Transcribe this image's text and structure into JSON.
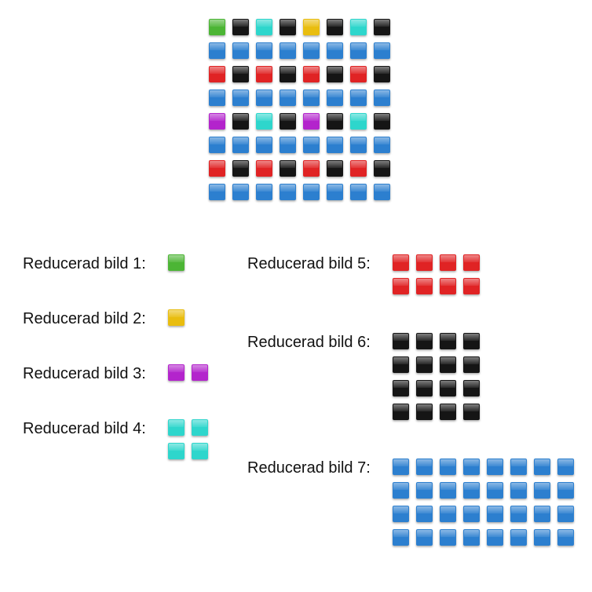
{
  "colors": {
    "green": "#4cb535",
    "yellow": "#e9bd0f",
    "cyan": "#2ed6cc",
    "black": "#151515",
    "blue": "#2c7fcf",
    "red": "#e02324",
    "purple": "#b324cc"
  },
  "main_grid": {
    "rows": [
      [
        "green",
        "black",
        "cyan",
        "black",
        "yellow",
        "black",
        "cyan",
        "black"
      ],
      [
        "blue",
        "blue",
        "blue",
        "blue",
        "blue",
        "blue",
        "blue",
        "blue"
      ],
      [
        "red",
        "black",
        "red",
        "black",
        "red",
        "black",
        "red",
        "black"
      ],
      [
        "blue",
        "blue",
        "blue",
        "blue",
        "blue",
        "blue",
        "blue",
        "blue"
      ],
      [
        "purple",
        "black",
        "cyan",
        "black",
        "purple",
        "black",
        "cyan",
        "black"
      ],
      [
        "blue",
        "blue",
        "blue",
        "blue",
        "blue",
        "blue",
        "blue",
        "blue"
      ],
      [
        "red",
        "black",
        "red",
        "black",
        "red",
        "black",
        "red",
        "black"
      ],
      [
        "blue",
        "blue",
        "blue",
        "blue",
        "blue",
        "blue",
        "blue",
        "blue"
      ]
    ]
  },
  "reduced_images": [
    {
      "label": "Reducerad bild 1:",
      "color": "green",
      "cols": 1,
      "rows": 1
    },
    {
      "label": "Reducerad bild 2:",
      "color": "yellow",
      "cols": 1,
      "rows": 1
    },
    {
      "label": "Reducerad bild 3:",
      "color": "purple",
      "cols": 2,
      "rows": 1
    },
    {
      "label": "Reducerad bild 4:",
      "color": "cyan",
      "cols": 2,
      "rows": 2
    },
    {
      "label": "Reducerad bild 5:",
      "color": "red",
      "cols": 4,
      "rows": 2
    },
    {
      "label": "Reducerad bild 6:",
      "color": "black",
      "cols": 4,
      "rows": 4
    },
    {
      "label": "Reducerad bild 7:",
      "color": "blue",
      "cols": 8,
      "rows": 4
    }
  ]
}
